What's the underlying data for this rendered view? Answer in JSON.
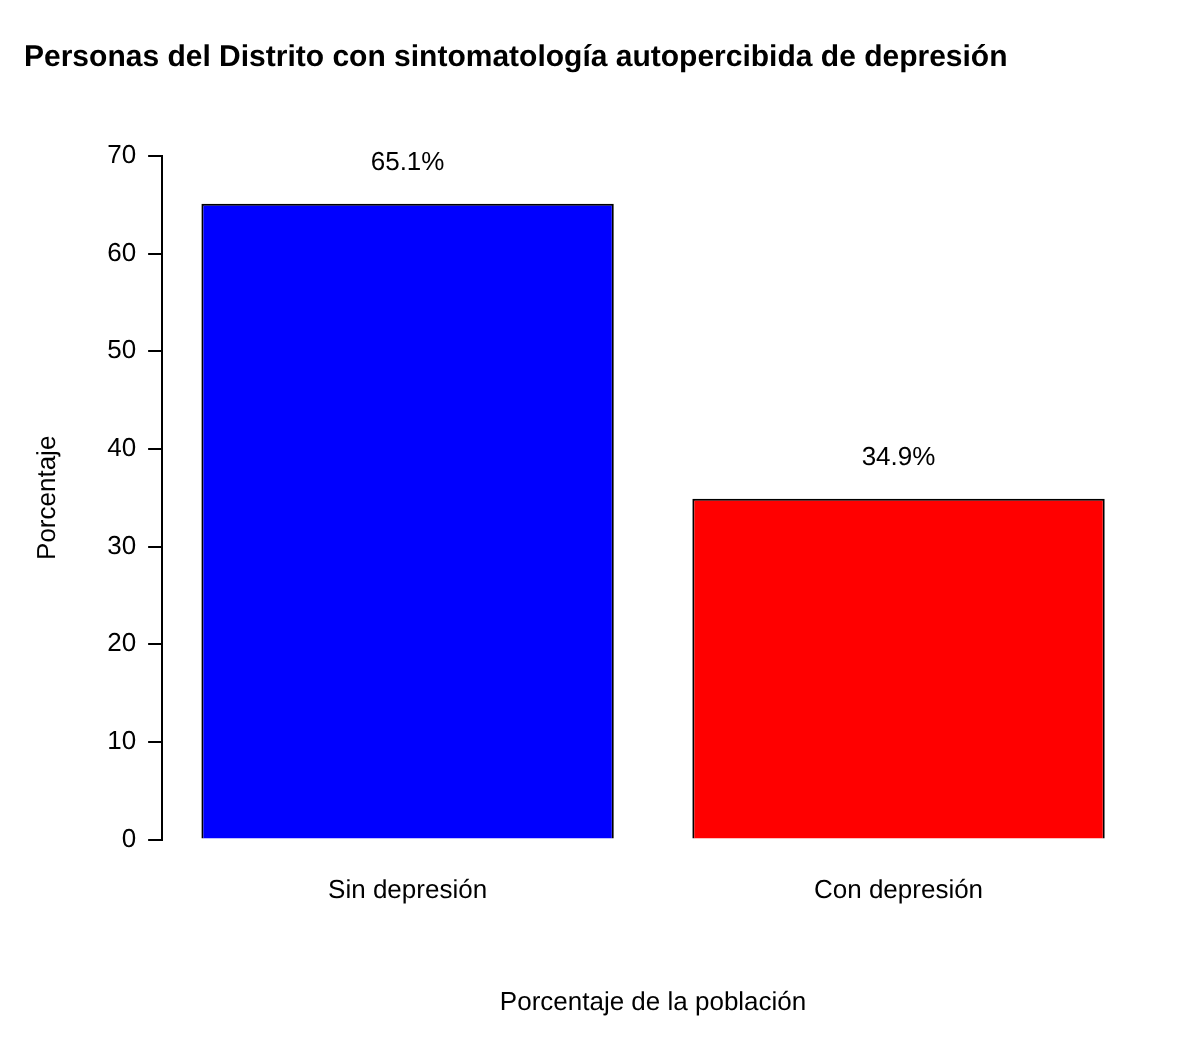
{
  "chart_data": {
    "type": "bar",
    "title": "Personas del Distrito con sintomatología autopercibida de depresión",
    "xlabel": "Porcentaje de la población",
    "ylabel": "Porcentaje",
    "categories": [
      "Sin depresión",
      "Con depresión"
    ],
    "values": [
      65.1,
      34.9
    ],
    "colors": [
      "#0000ff",
      "#ff0000"
    ],
    "value_labels": [
      "65.1%",
      "34.9%"
    ],
    "ylim": [
      0,
      70
    ],
    "yticks": [
      0,
      10,
      20,
      30,
      40,
      50,
      60,
      70
    ],
    "grid": false,
    "legend": false
  }
}
